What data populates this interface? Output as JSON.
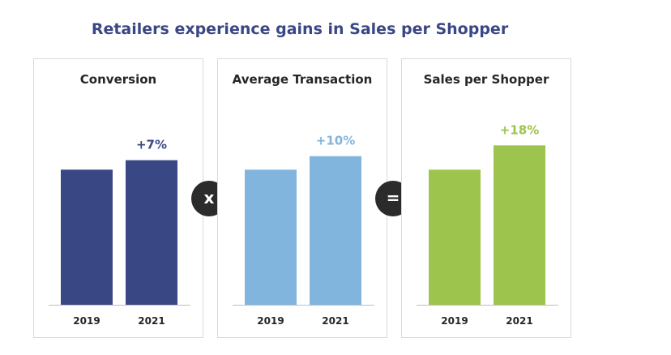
{
  "title": "Retailers experience gains in Sales per Shopper",
  "colors": {
    "title": "#3a4785",
    "conversion": "#3a4785",
    "average_transaction": "#81b5de",
    "sales_per_shopper": "#9dc44d",
    "operator_bg": "#2b2b2b"
  },
  "operators": {
    "multiply": "x",
    "equals": "="
  },
  "chart_data": [
    {
      "type": "bar",
      "title": "Conversion",
      "categories": [
        "2019",
        "2021"
      ],
      "values": [
        100,
        107
      ],
      "change_label": "+7%",
      "color": "#3a4785",
      "ylim": [
        0,
        120
      ]
    },
    {
      "type": "bar",
      "title": "Average Transaction",
      "categories": [
        "2019",
        "2021"
      ],
      "values": [
        100,
        110
      ],
      "change_label": "+10%",
      "color": "#81b5de",
      "ylim": [
        0,
        120
      ]
    },
    {
      "type": "bar",
      "title": "Sales per Shopper",
      "categories": [
        "2019",
        "2021"
      ],
      "values": [
        100,
        118
      ],
      "change_label": "+18%",
      "color": "#9dc44d",
      "ylim": [
        0,
        120
      ]
    }
  ]
}
